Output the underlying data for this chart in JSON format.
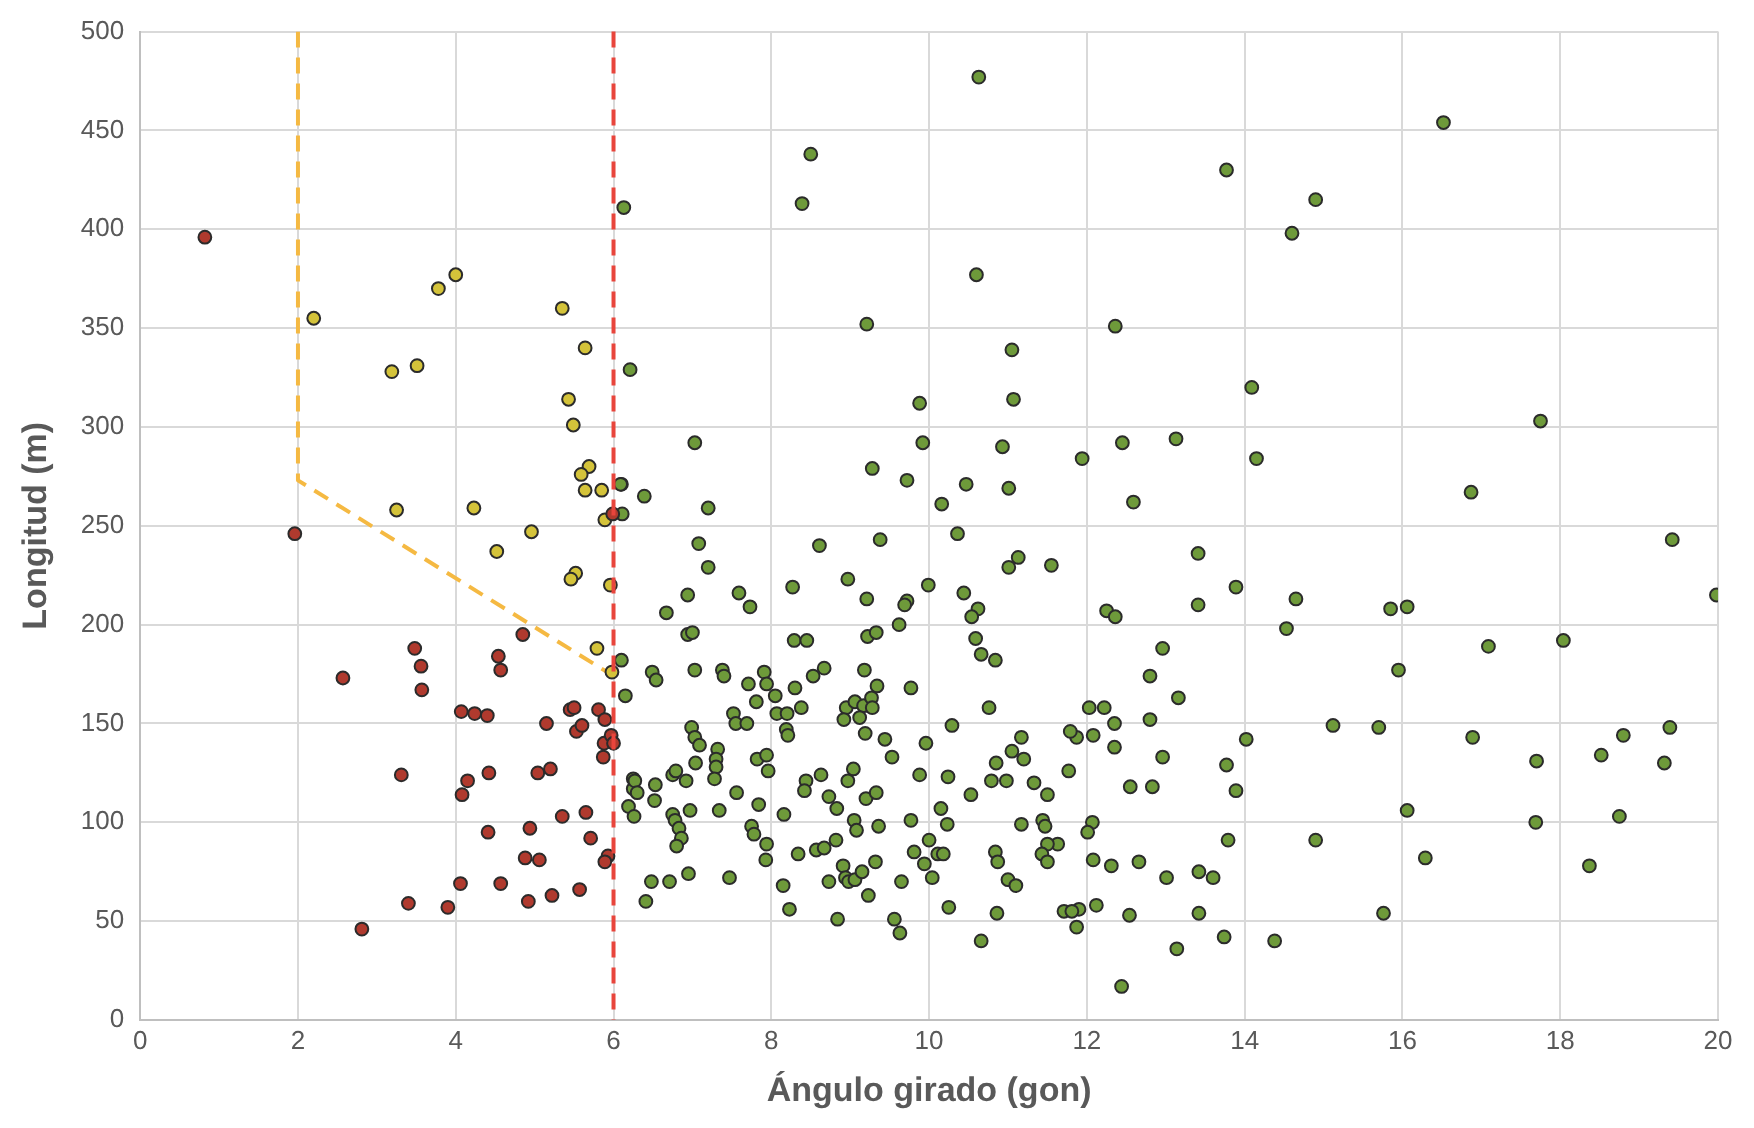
{
  "chart_data": {
    "type": "scatter",
    "xlabel": "Ángulo girado (gon)",
    "ylabel": "Longitud (m)",
    "xlim": [
      0,
      20
    ],
    "xticks": [
      0,
      2,
      4,
      6,
      8,
      10,
      12,
      14,
      16,
      18,
      20
    ],
    "ylim": [
      0,
      500
    ],
    "yticks": [
      0,
      50,
      100,
      150,
      200,
      250,
      300,
      350,
      400,
      450,
      500
    ],
    "grid": true,
    "marker": "circle",
    "ref_lines": [
      {
        "axis": "x",
        "value": 6,
        "color": "#e8453c",
        "line_style": "dashed"
      }
    ],
    "series": [
      {
        "color": "#b03a2e",
        "x": [
          0.82,
          1.96,
          2.57,
          3.48,
          3.56,
          3.57,
          3.31,
          3.4,
          3.9,
          2.81,
          4.07,
          4.24,
          4.4,
          4.54,
          4.57,
          4.85,
          4.15,
          4.42,
          4.08,
          4.41,
          4.94,
          4.88,
          5.06,
          4.06,
          4.57,
          4.92,
          5.22,
          5.57,
          5.35,
          5.65,
          5.71,
          5.15,
          5.04,
          5.2,
          5.45,
          5.5,
          5.53,
          5.6,
          5.81,
          5.89,
          5.88,
          5.97,
          6.0,
          5.87,
          5.93,
          5.89,
          5.99
        ],
        "values": [
          396,
          246,
          173,
          188,
          179,
          167,
          124,
          59,
          57,
          46,
          156,
          155,
          154,
          184,
          177,
          195,
          121,
          125,
          114,
          95,
          97,
          82,
          81,
          69,
          69,
          60,
          63,
          66,
          103,
          105,
          92,
          150,
          125,
          127,
          157,
          158,
          146,
          149,
          157,
          152,
          140,
          144,
          140,
          133,
          83,
          80,
          256
        ]
      },
      {
        "color": "#d4c33a",
        "x": [
          2.2,
          3.19,
          3.51,
          3.78,
          4.0,
          3.25,
          4.23,
          5.35,
          5.64,
          5.43,
          5.49,
          5.69,
          5.59,
          5.64,
          5.85,
          5.89,
          4.96,
          4.52,
          5.52,
          5.46,
          5.79,
          5.98,
          5.96
        ],
        "values": [
          355,
          328,
          331,
          370,
          377,
          258,
          259,
          360,
          340,
          314,
          301,
          280,
          276,
          268,
          268,
          253,
          247,
          237,
          226,
          223,
          188,
          176,
          220
        ]
      },
      {
        "color": "#6e9a3a",
        "x": [
          6.13,
          6.21,
          6.1,
          6.11,
          6.1,
          6.15,
          6.25,
          6.25,
          6.19,
          6.26,
          10.63,
          8.5,
          8.39,
          10.6,
          9.21,
          12.36,
          11.05,
          11.07,
          9.88,
          7.03,
          9.92,
          10.93,
          11.94,
          9.28,
          9.72,
          10.47,
          11.01,
          6.39,
          7.2,
          10.16,
          6.09,
          16.52,
          13.77,
          14.9,
          14.6,
          14.09,
          17.75,
          12.45,
          13.13,
          14.15,
          12.59,
          16.87,
          19.42,
          13.41,
          13.89,
          14.65,
          13.41,
          19.98,
          12.25,
          12.36,
          15.85,
          16.06,
          14.53,
          17.09,
          18.04,
          12.96,
          15.95,
          12.8,
          13.16,
          12.03,
          12.22,
          12.8,
          12.35,
          15.12,
          15.7,
          19.39,
          11.87,
          12.08,
          16.89,
          18.8,
          14.02,
          12.35,
          18.52,
          12.96,
          17.7,
          19.32,
          13.77,
          12.55,
          12.83,
          13.89,
          16.06,
          17.69,
          18.75,
          12.07,
          12.01,
          13.79,
          14.9,
          16.29,
          12.08,
          12.31,
          12.66,
          18.37,
          13.01,
          13.42,
          13.6,
          12.12,
          11.9,
          11.87,
          12.54,
          13.42,
          15.76,
          13.74,
          14.38,
          13.14,
          12.44,
          7.08,
          9.38,
          8.61,
          10.36,
          7.2,
          11.13,
          11.01,
          11.55,
          8.27,
          8.97,
          9.99,
          6.94,
          7.59,
          9.21,
          10.44,
          7.73,
          6.67,
          9.72,
          9.69,
          10.62,
          10.54,
          9.62,
          6.94,
          7.0,
          8.29,
          8.45,
          9.22,
          9.33,
          10.59,
          10.66,
          10.84,
          6.49,
          6.54,
          7.03,
          7.38,
          7.4,
          7.91,
          7.94,
          7.71,
          8.67,
          8.53,
          8.3,
          9.18,
          9.34,
          9.77,
          8.05,
          7.81,
          8.38,
          8.95,
          9.06,
          9.17,
          9.27,
          9.28,
          8.92,
          9.12,
          7.52,
          7.55,
          7.69,
          8.07,
          8.2,
          8.19,
          8.21,
          6.99,
          7.03,
          7.09,
          9.19,
          9.44,
          10.29,
          9.96,
          9.53,
          7.32,
          7.3,
          7.3,
          7.28,
          7.82,
          7.94,
          7.96,
          7.04,
          6.75,
          6.79,
          6.92,
          6.27,
          6.3,
          6.53,
          6.52,
          7.56,
          7.34,
          6.97,
          6.75,
          6.78,
          6.83,
          6.86,
          6.8,
          7.84,
          7.75,
          7.78,
          7.94,
          7.93,
          8.16,
          8.44,
          8.42,
          8.63,
          8.97,
          9.04,
          8.73,
          8.83,
          9.2,
          9.33,
          9.05,
          9.08,
          9.36,
          9.77,
          9.88,
          10.24,
          10.15,
          10.23,
          10.53,
          10.0,
          8.34,
          8.57,
          8.67,
          8.82,
          8.91,
          8.94,
          8.98,
          9.06,
          9.15,
          9.32,
          9.23,
          9.65,
          9.81,
          9.94,
          10.11,
          10.18,
          10.04,
          10.25,
          9.56,
          9.63,
          8.84,
          8.23,
          8.15,
          8.73,
          7.47,
          6.95,
          6.48,
          6.71,
          6.41,
          10.66,
          10.86,
          10.76,
          10.85,
          10.79,
          10.98,
          11.05,
          11.17,
          11.2,
          11.33,
          11.5,
          11.77,
          11.17,
          11.44,
          11.47,
          11.63,
          11.5,
          11.43,
          11.5,
          10.84,
          10.87,
          11.0,
          11.1,
          11.79,
          11.71,
          11.81
        ],
        "values": [
          411,
          329,
          271,
          256,
          182,
          164,
          122,
          117,
          108,
          103,
          477,
          438,
          413,
          377,
          352,
          351,
          339,
          314,
          312,
          292,
          292,
          290,
          284,
          279,
          273,
          271,
          269,
          265,
          259,
          261,
          271,
          454,
          430,
          415,
          398,
          320,
          303,
          292,
          294,
          284,
          262,
          267,
          243,
          236,
          219,
          213,
          210,
          215,
          207,
          204,
          208,
          209,
          198,
          189,
          192,
          188,
          177,
          174,
          163,
          158,
          158,
          152,
          150,
          149,
          148,
          148,
          143,
          144,
          143,
          144,
          142,
          138,
          134,
          133,
          131,
          130,
          129,
          118,
          118,
          116,
          106,
          100,
          103,
          100,
          95,
          91,
          91,
          82,
          81,
          78,
          80,
          78,
          72,
          75,
          72,
          58,
          56,
          47,
          53,
          54,
          54,
          42,
          40,
          36,
          17,
          241,
          243,
          240,
          246,
          229,
          234,
          229,
          230,
          219,
          223,
          220,
          215,
          216,
          213,
          216,
          209,
          206,
          212,
          210,
          208,
          204,
          200,
          195,
          196,
          192,
          192,
          194,
          196,
          193,
          185,
          182,
          176,
          172,
          177,
          177,
          174,
          176,
          170,
          170,
          178,
          174,
          168,
          177,
          169,
          168,
          164,
          161,
          158,
          158,
          161,
          159,
          163,
          158,
          152,
          153,
          155,
          150,
          150,
          155,
          155,
          147,
          144,
          148,
          143,
          139,
          145,
          142,
          149,
          140,
          133,
          137,
          132,
          128,
          122,
          132,
          134,
          126,
          130,
          124,
          126,
          121,
          121,
          115,
          119,
          111,
          115,
          106,
          106,
          104,
          101,
          97,
          92,
          88,
          109,
          98,
          94,
          89,
          81,
          104,
          121,
          116,
          124,
          121,
          127,
          113,
          107,
          112,
          115,
          101,
          96,
          98,
          101,
          124,
          123,
          107,
          99,
          114,
          91,
          84,
          86,
          87,
          91,
          78,
          72,
          70,
          71,
          75,
          80,
          63,
          70,
          85,
          79,
          84,
          84,
          72,
          57,
          51,
          44,
          51,
          56,
          68,
          70,
          72,
          74,
          70,
          70,
          60,
          40,
          54,
          158,
          130,
          121,
          121,
          136,
          143,
          132,
          120,
          114,
          126,
          99,
          101,
          98,
          89,
          89,
          84,
          80,
          85,
          80,
          71,
          68,
          146,
          55,
          55
        ]
      },
      {
        "type": "line",
        "color": "#f5b942",
        "line_style": "dashed",
        "marker": "none",
        "x": [
          2,
          2,
          6
        ],
        "values": [
          500,
          273,
          174
        ]
      }
    ]
  }
}
